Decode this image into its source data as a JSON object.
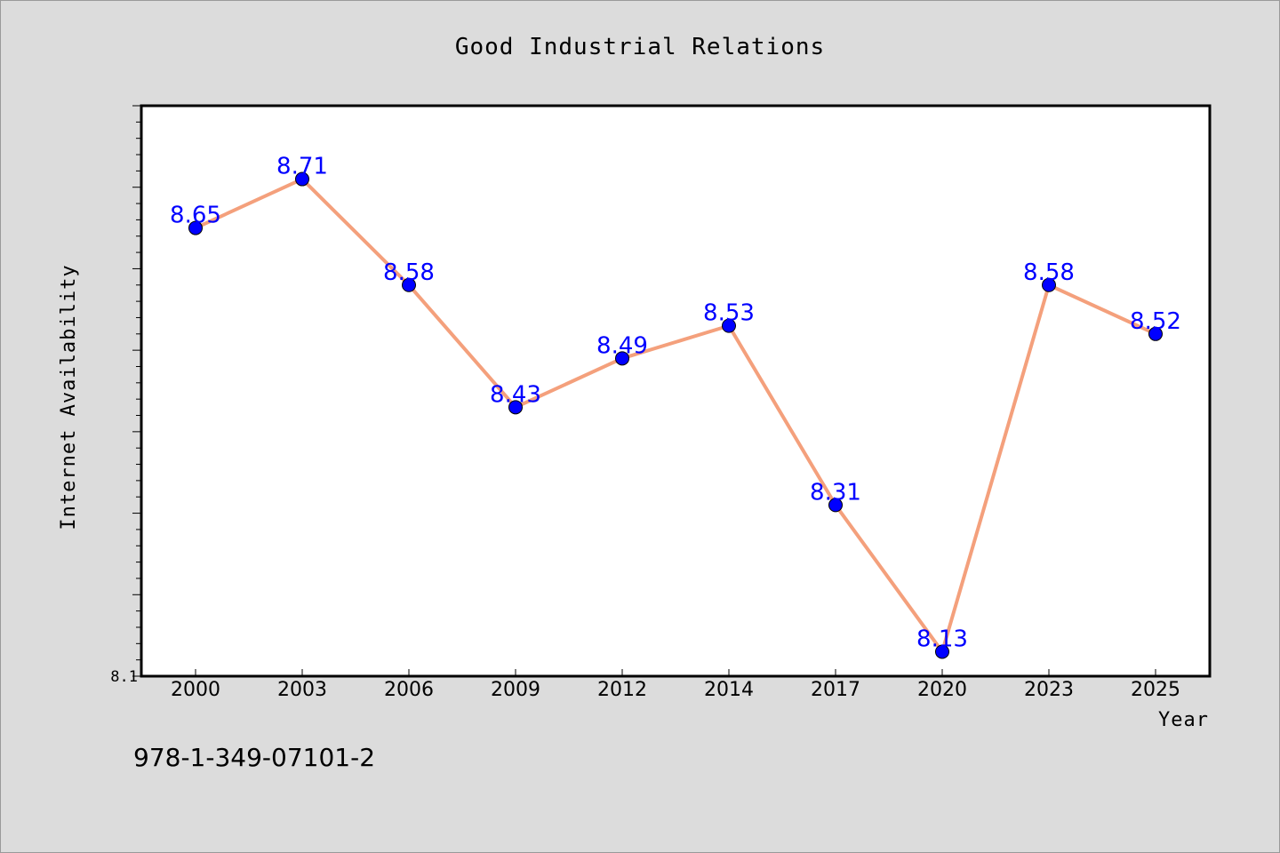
{
  "colors": {
    "background": "#dcdcdc",
    "plot_background": "#ffffff",
    "line": "#f4a07c",
    "marker": "#0000ff",
    "data_label": "#0000ff"
  },
  "isbn": "978-1-349-07101-2",
  "chart_data": {
    "type": "line",
    "title": "Good Industrial Relations",
    "xlabel": "Year",
    "ylabel": "Internet Availability",
    "categories": [
      "2000",
      "2003",
      "2006",
      "2009",
      "2012",
      "2014",
      "2017",
      "2020",
      "2023",
      "2025"
    ],
    "series": [
      {
        "values": [
          8.65,
          8.71,
          8.58,
          8.43,
          8.49,
          8.53,
          8.31,
          8.13,
          8.58,
          8.52
        ],
        "labels": [
          "8.65",
          "8.71",
          "8.58",
          "8.43",
          "8.49",
          "8.53",
          "8.31",
          "8.13",
          "8.58",
          "8.52"
        ]
      }
    ],
    "ylim": [
      8.1,
      8.8
    ],
    "yticks_labeled": [
      "8.1"
    ],
    "grid": false,
    "legend": "none",
    "markers": "circle"
  }
}
